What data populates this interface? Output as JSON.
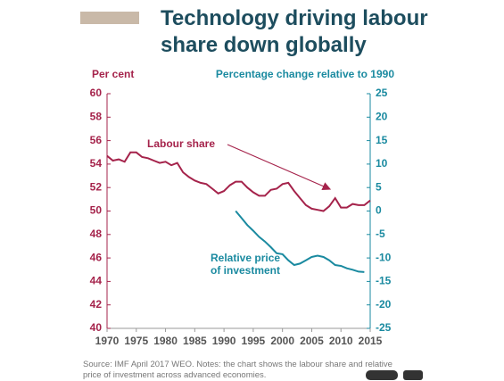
{
  "chart_data": {
    "type": "line",
    "title": "Technology driving labour share down globally",
    "ylabel": "Per cent",
    "y2label": "Percentage change relative to 1990",
    "x": [
      1970,
      1971,
      1972,
      1973,
      1974,
      1975,
      1976,
      1977,
      1978,
      1979,
      1980,
      1981,
      1982,
      1983,
      1984,
      1985,
      1986,
      1987,
      1988,
      1989,
      1990,
      1991,
      1992,
      1993,
      1994,
      1995,
      1996,
      1997,
      1998,
      1999,
      2000,
      2001,
      2002,
      2003,
      2004,
      2005,
      2006,
      2007,
      2008,
      2009,
      2010,
      2011,
      2012,
      2013,
      2014,
      2015
    ],
    "series": [
      {
        "name": "Labour share",
        "color": "#a5234b",
        "axis": "y",
        "values": [
          54.7,
          54.3,
          54.4,
          54.2,
          55.0,
          55.0,
          54.6,
          54.5,
          54.3,
          54.1,
          54.2,
          53.9,
          54.1,
          53.3,
          52.9,
          52.6,
          52.4,
          52.3,
          51.9,
          51.5,
          51.7,
          52.2,
          52.5,
          52.5,
          52.0,
          51.6,
          51.3,
          51.3,
          51.8,
          51.9,
          52.3,
          52.4,
          51.7,
          51.1,
          50.5,
          50.2,
          50.1,
          50.0,
          50.4,
          51.1,
          50.3,
          50.3,
          50.6,
          50.5,
          50.5,
          50.9
        ]
      },
      {
        "name": "Relative price of investment",
        "color": "#1a8aa0",
        "axis": "y2",
        "values": [
          null,
          null,
          null,
          null,
          null,
          null,
          null,
          null,
          null,
          null,
          null,
          null,
          null,
          null,
          null,
          null,
          null,
          null,
          null,
          null,
          null,
          null,
          0,
          -1.5,
          -3,
          -4.2,
          -5.5,
          -6.5,
          -7.7,
          -9,
          -9.2,
          -10.5,
          -11.5,
          -11.2,
          -10.5,
          -9.8,
          -9.5,
          -9.8,
          -10.5,
          -11.5,
          -11.7,
          -12.2,
          -12.5,
          -12.9,
          -13.0,
          null
        ]
      }
    ],
    "xlim": [
      1970,
      2015
    ],
    "xticks": [
      1970,
      1975,
      1980,
      1985,
      1990,
      1995,
      2000,
      2005,
      2010,
      2015
    ],
    "ylim": [
      40,
      60
    ],
    "yticks": [
      40,
      42,
      44,
      46,
      48,
      50,
      52,
      54,
      56,
      58,
      60
    ],
    "y2lim": [
      -25,
      25
    ],
    "y2ticks": [
      -25,
      -20,
      -15,
      -10,
      -5,
      0,
      5,
      10,
      15,
      20,
      25
    ],
    "source": "Source:  IMF April 2017 WEO.    Notes:  the chart shows the labour share and relative price of investment across advanced economies."
  }
}
